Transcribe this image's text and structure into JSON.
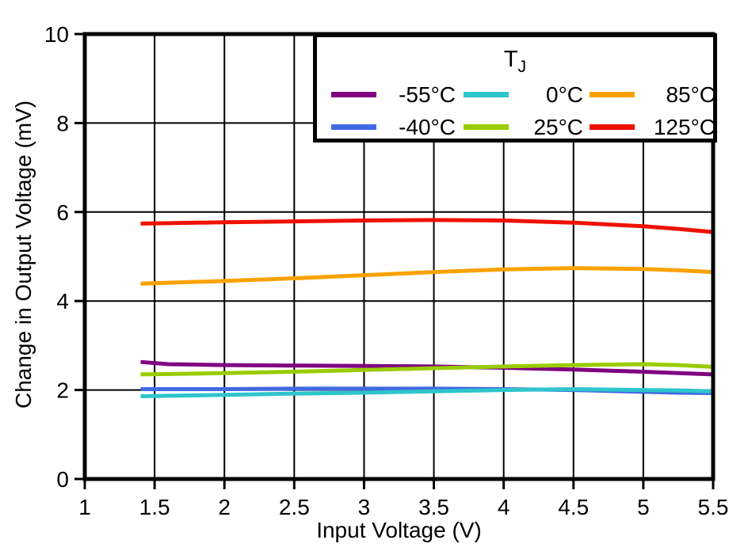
{
  "chart_data": {
    "type": "line",
    "title": "",
    "xlabel": "Input Voltage (V)",
    "ylabel": "Change in Output Voltage (mV)",
    "xlim": [
      1,
      5.5
    ],
    "ylim": [
      0,
      10
    ],
    "x_ticks": [
      1,
      1.5,
      2,
      2.5,
      3,
      3.5,
      4,
      4.5,
      5,
      5.5
    ],
    "x_tick_labels": [
      "1",
      "1.5",
      "2",
      "2.5",
      "3",
      "3.5",
      "4",
      "4.5",
      "5",
      "5.5"
    ],
    "y_ticks": [
      0,
      2,
      4,
      6,
      8,
      10
    ],
    "y_tick_labels": [
      "0",
      "2",
      "4",
      "6",
      "8",
      "10"
    ],
    "x_gridlines": [
      1.5,
      2,
      2.5,
      3,
      3.5,
      4,
      4.5,
      5
    ],
    "y_gridlines": [
      2,
      4,
      6,
      8
    ],
    "grid": true,
    "legend": {
      "position": "top-right",
      "title_main": "T",
      "title_sub": "J"
    },
    "x": [
      1.4,
      1.6,
      2,
      2.5,
      3,
      3.5,
      4,
      4.5,
      5,
      5.25,
      5.5
    ],
    "series": [
      {
        "name": "-55°C",
        "color": "#800080",
        "values": [
          2.63,
          2.58,
          2.56,
          2.55,
          2.54,
          2.53,
          2.5,
          2.46,
          2.41,
          2.38,
          2.35
        ]
      },
      {
        "name": "-40°C",
        "color": "#4169E1",
        "values": [
          2.02,
          2.02,
          2.02,
          2.03,
          2.03,
          2.03,
          2.02,
          2.0,
          1.96,
          1.94,
          1.93
        ]
      },
      {
        "name": "0°C",
        "color": "#2EC5CC",
        "values": [
          1.86,
          1.87,
          1.89,
          1.92,
          1.94,
          1.97,
          2.0,
          2.02,
          2.0,
          1.99,
          1.97
        ]
      },
      {
        "name": "25°C",
        "color": "#99CC00",
        "values": [
          2.35,
          2.36,
          2.38,
          2.41,
          2.45,
          2.49,
          2.53,
          2.56,
          2.58,
          2.56,
          2.52
        ]
      },
      {
        "name": "85°C",
        "color": "#F9A201",
        "values": [
          4.39,
          4.41,
          4.45,
          4.51,
          4.58,
          4.65,
          4.71,
          4.74,
          4.72,
          4.69,
          4.65
        ]
      },
      {
        "name": "125°C",
        "color": "#EE1100",
        "values": [
          5.74,
          5.75,
          5.77,
          5.79,
          5.81,
          5.82,
          5.81,
          5.76,
          5.68,
          5.62,
          5.55
        ]
      }
    ],
    "style": {
      "frame_color": "#000000",
      "grid_color": "#000000",
      "background": "#ffffff"
    }
  }
}
